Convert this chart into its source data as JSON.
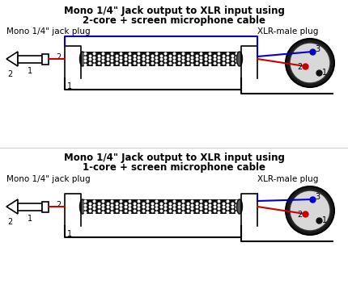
{
  "bg_color": "#ffffff",
  "title1": "Mono 1/4\" Jack output to XLR input using",
  "subtitle1": "2-core + screen microphone cable",
  "title2": "Mono 1/4\" Jack output to XLR input using",
  "subtitle2": "1-core + screen microphone cable",
  "label_mono_jack": "Mono 1/4\" jack plug",
  "label_xlr": "XLR-male plug",
  "wire_red": "#cc0000",
  "wire_blue": "#0000cc",
  "wire_black": "#000000",
  "plug_fill": "#d8d8d8",
  "title_fontsize": 8.5,
  "label_fontsize": 7.5
}
